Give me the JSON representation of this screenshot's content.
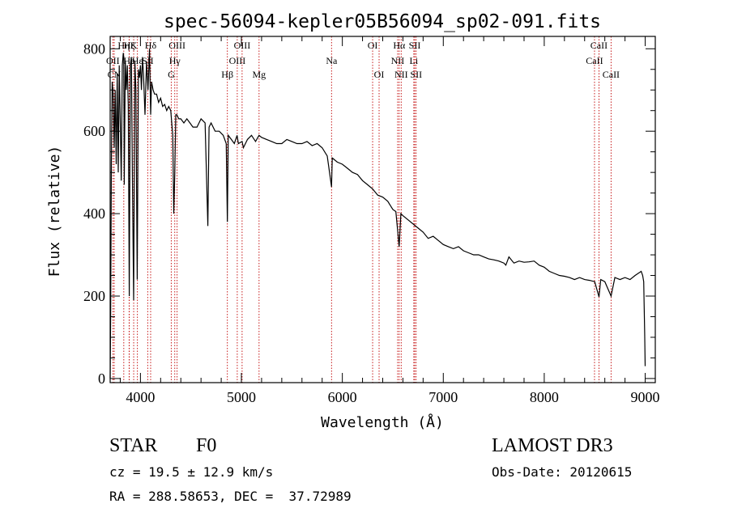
{
  "chart_data": {
    "type": "line",
    "title": "spec-56094-kepler05B56094_sp02-091.fits",
    "xlabel": "Wavelength (Å)",
    "ylabel": "Flux (relative)",
    "xlim": [
      3700,
      9100
    ],
    "ylim": [
      -10,
      830
    ],
    "x_ticks": [
      4000,
      5000,
      6000,
      7000,
      8000,
      9000
    ],
    "y_ticks": [
      0,
      200,
      400,
      600,
      800
    ],
    "grid": false,
    "series": [
      {
        "name": "flux",
        "x": [
          3700,
          3705,
          3712,
          3720,
          3730,
          3740,
          3750,
          3760,
          3770,
          3780,
          3790,
          3800,
          3810,
          3820,
          3830,
          3835,
          3840,
          3850,
          3860,
          3870,
          3880,
          3889,
          3900,
          3910,
          3920,
          3933,
          3945,
          3955,
          3968,
          3980,
          3990,
          4000,
          4010,
          4020,
          4030,
          4045,
          4060,
          4075,
          4090,
          4101,
          4110,
          4125,
          4140,
          4160,
          4180,
          4200,
          4220,
          4240,
          4260,
          4280,
          4300,
          4320,
          4330,
          4340,
          4350,
          4360,
          4380,
          4400,
          4430,
          4460,
          4490,
          4520,
          4560,
          4600,
          4640,
          4668,
          4680,
          4700,
          4740,
          4780,
          4820,
          4850,
          4861,
          4870,
          4900,
          4930,
          4957,
          4970,
          5007,
          5020,
          5060,
          5100,
          5140,
          5175,
          5200,
          5250,
          5300,
          5350,
          5400,
          5450,
          5500,
          5550,
          5600,
          5650,
          5700,
          5750,
          5800,
          5850,
          5893,
          5900,
          5950,
          6000,
          6050,
          6100,
          6150,
          6200,
          6250,
          6300,
          6350,
          6400,
          6450,
          6500,
          6530,
          6563,
          6580,
          6600,
          6650,
          6700,
          6750,
          6800,
          6850,
          6900,
          6950,
          7000,
          7050,
          7100,
          7150,
          7200,
          7250,
          7300,
          7350,
          7400,
          7450,
          7500,
          7550,
          7600,
          7620,
          7650,
          7700,
          7750,
          7800,
          7850,
          7900,
          7950,
          8000,
          8050,
          8100,
          8150,
          8200,
          8250,
          8300,
          8350,
          8400,
          8450,
          8500,
          8542,
          8560,
          8600,
          8662,
          8700,
          8750,
          8800,
          8850,
          8900,
          8930,
          8960,
          8975,
          8985,
          8995,
          9000
        ],
        "y": [
          0,
          150,
          520,
          720,
          690,
          560,
          700,
          520,
          740,
          500,
          760,
          620,
          480,
          760,
          790,
          780,
          470,
          770,
          700,
          760,
          660,
          200,
          760,
          780,
          500,
          190,
          770,
          700,
          240,
          750,
          730,
          760,
          700,
          780,
          740,
          640,
          770,
          700,
          800,
          640,
          720,
          700,
          690,
          690,
          670,
          680,
          660,
          665,
          650,
          660,
          650,
          590,
          400,
          500,
          640,
          640,
          630,
          630,
          620,
          630,
          620,
          610,
          610,
          630,
          620,
          370,
          610,
          620,
          600,
          600,
          590,
          570,
          380,
          590,
          580,
          570,
          590,
          570,
          575,
          560,
          580,
          590,
          575,
          590,
          585,
          580,
          575,
          570,
          570,
          580,
          575,
          570,
          570,
          575,
          565,
          570,
          560,
          540,
          465,
          535,
          525,
          520,
          510,
          500,
          495,
          480,
          470,
          460,
          445,
          440,
          430,
          410,
          405,
          320,
          400,
          395,
          385,
          375,
          365,
          355,
          340,
          345,
          335,
          325,
          320,
          315,
          320,
          310,
          305,
          300,
          300,
          295,
          290,
          288,
          285,
          280,
          275,
          295,
          280,
          285,
          282,
          283,
          285,
          275,
          270,
          260,
          255,
          250,
          248,
          245,
          240,
          245,
          240,
          238,
          235,
          198,
          240,
          235,
          200,
          245,
          240,
          245,
          240,
          250,
          255,
          260,
          250,
          235,
          110,
          30
        ]
      }
    ],
    "lines": [
      {
        "name": "Hη",
        "wl": 3835,
        "row": 1
      },
      {
        "name": "OII",
        "wl": 3727,
        "row": 2
      },
      {
        "name": "CN",
        "wl": 3740,
        "row": 3
      },
      {
        "name": "Hζ",
        "wl": 3889,
        "row": 1
      },
      {
        "name": "He",
        "wl": 3888,
        "row": 2
      },
      {
        "name": "K",
        "wl": 3933,
        "row": 1
      },
      {
        "name": "Hε",
        "wl": 3970,
        "row": 2
      },
      {
        "name": "Hδ",
        "wl": 4101,
        "row": 1
      },
      {
        "name": "SII",
        "wl": 4072,
        "row": 2
      },
      {
        "name": "OIII",
        "wl": 4363,
        "row": 1
      },
      {
        "name": "Hγ",
        "wl": 4340,
        "row": 2
      },
      {
        "name": "G",
        "wl": 4305,
        "row": 3
      },
      {
        "name": "OIII",
        "wl": 5007,
        "row": 1
      },
      {
        "name": "OIII",
        "wl": 4959,
        "row": 2
      },
      {
        "name": "Hβ",
        "wl": 4861,
        "row": 3
      },
      {
        "name": "Mg",
        "wl": 5175,
        "row": 3
      },
      {
        "name": "Na",
        "wl": 5893,
        "row": 2
      },
      {
        "name": "OI",
        "wl": 6300,
        "row": 1
      },
      {
        "name": "OI",
        "wl": 6364,
        "row": 3
      },
      {
        "name": "Hα",
        "wl": 6563,
        "row": 1
      },
      {
        "name": "NII",
        "wl": 6548,
        "row": 2
      },
      {
        "name": "NII",
        "wl": 6583,
        "row": 3
      },
      {
        "name": "SII",
        "wl": 6717,
        "row": 1
      },
      {
        "name": "Li",
        "wl": 6708,
        "row": 2
      },
      {
        "name": "SII",
        "wl": 6731,
        "row": 3
      },
      {
        "name": "CaII",
        "wl": 8542,
        "row": 1
      },
      {
        "name": "CaII",
        "wl": 8498,
        "row": 2
      },
      {
        "name": "CaII",
        "wl": 8662,
        "row": 3
      }
    ]
  },
  "info": {
    "class_label": "STAR",
    "subclass": "F0",
    "cz": "cz = 19.5 ± 12.9 km/s",
    "coords": "RA = 288.58653, DEC =  37.72989",
    "survey": "LAMOST DR3",
    "obs_date": "Obs-Date: 20120615"
  },
  "colors": {
    "spectrum": "#000000",
    "line_marker": "#c00000",
    "axis": "#000000"
  }
}
